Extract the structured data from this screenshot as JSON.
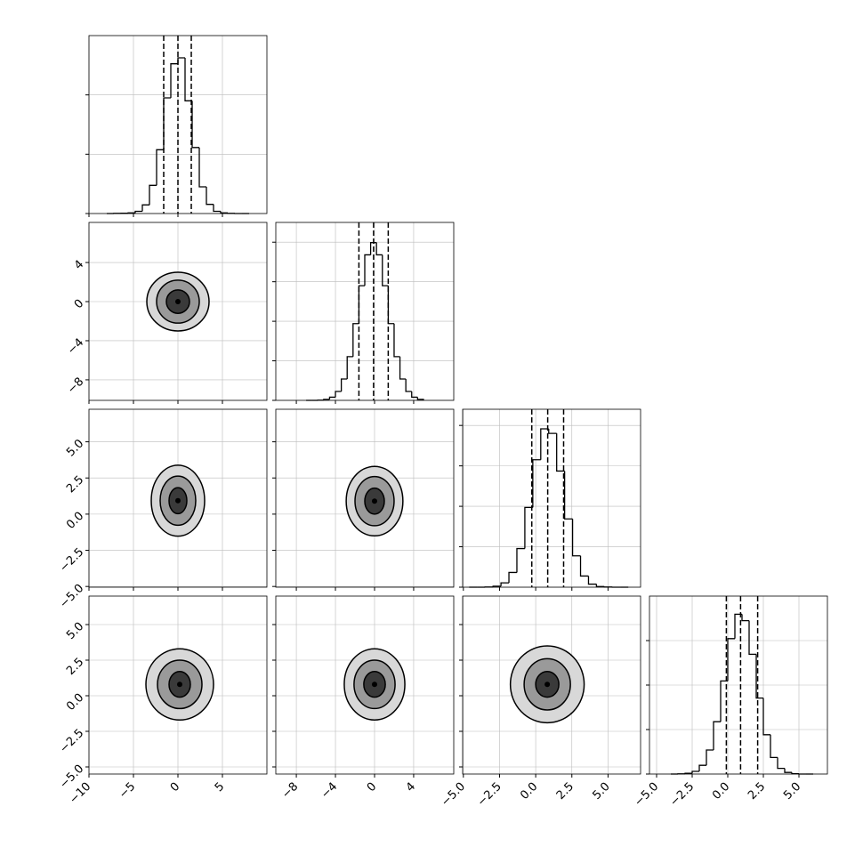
{
  "chart_data": {
    "type": "corner",
    "grid": true,
    "params": [
      {
        "xlim": [
          -10,
          10
        ],
        "xticks": [
          {
            "value": -10,
            "label": "−10"
          },
          {
            "value": -5,
            "label": "−5"
          },
          0,
          5
        ],
        "bins": [
          -8,
          -7.2,
          -6.4,
          -5.6,
          -4.8,
          -4,
          -3.2,
          -2.4,
          -1.6,
          -0.8,
          0,
          0.8,
          1.6,
          2.4,
          3.2,
          4,
          4.8,
          5.6,
          6.4,
          7.2,
          8
        ],
        "counts": [
          0,
          1,
          2,
          4,
          15,
          58,
          190,
          430,
          780,
          1010,
          1050,
          760,
          445,
          180,
          62,
          15,
          4,
          1,
          0,
          0
        ],
        "hist_ylim": [
          0,
          1200
        ],
        "hist_yticks": [
          0,
          400,
          800
        ],
        "quantiles": [
          -1.6,
          0,
          1.5
        ]
      },
      {
        "xlim": [
          -10.1,
          8.1
        ],
        "xticks": [
          {
            "value": -8,
            "label": "−8"
          },
          {
            "value": -4,
            "label": "−4"
          },
          0,
          4
        ],
        "bins": [
          -7,
          -6.4,
          -5.8,
          -5.2,
          -4.6,
          -4,
          -3.4,
          -2.8,
          -2.2,
          -1.6,
          -1,
          -0.4,
          0.2,
          0.8,
          1.4,
          2,
          2.6,
          3.2,
          3.8,
          4.4,
          5
        ],
        "counts": [
          0,
          0,
          1,
          5,
          16,
          45,
          108,
          221,
          388,
          580,
          736,
          798,
          736,
          580,
          388,
          221,
          108,
          45,
          16,
          5
        ],
        "hist_ylim": [
          0,
          900
        ],
        "hist_yticks": [
          0,
          200,
          400,
          600,
          800
        ],
        "quantiles": [
          -1.6,
          -0.1,
          1.4
        ]
      },
      {
        "xlim": [
          -5.05,
          7.25
        ],
        "xticks": [
          {
            "value": -5,
            "label": "−5.0"
          },
          {
            "value": -2.5,
            "label": "−2.5"
          },
          {
            "value": 0,
            "label": "0.0"
          },
          {
            "value": 2.5,
            "label": "2.5"
          },
          {
            "value": 5,
            "label": "5.0"
          }
        ],
        "bins": [
          -4.6,
          -4.05,
          -3.5,
          -2.95,
          -2.4,
          -1.85,
          -1.3,
          -0.75,
          -0.2,
          0.35,
          0.9,
          1.45,
          2,
          2.55,
          3.1,
          3.65,
          4.2,
          4.75,
          5.3,
          5.85,
          6.4
        ],
        "counts": [
          0,
          0,
          1,
          6,
          27,
          91,
          239,
          493,
          788,
          979,
          951,
          718,
          422,
          194,
          69,
          19,
          4,
          1,
          0,
          0
        ],
        "hist_ylim": [
          0,
          1100
        ],
        "hist_yticks": [
          0,
          250,
          500,
          750,
          1000
        ],
        "quantiles": [
          -0.27,
          0.83,
          1.93
        ]
      },
      {
        "xlim": [
          -5.5,
          7.0
        ],
        "xticks": [
          {
            "value": -5,
            "label": "−5.0"
          },
          {
            "value": -2.5,
            "label": "−2.5"
          },
          {
            "value": 0,
            "label": "0.0"
          },
          {
            "value": 2.5,
            "label": "2.5"
          },
          {
            "value": 5,
            "label": "5.0"
          }
        ],
        "bins": [
          -4,
          -3.5,
          -3,
          -2.5,
          -2,
          -1.5,
          -1,
          -0.5,
          0,
          0.5,
          1,
          1.5,
          2,
          2.5,
          3,
          3.5,
          4,
          4.5,
          5,
          5.5,
          6
        ],
        "counts": [
          0,
          1,
          4,
          15,
          49,
          135,
          294,
          523,
          761,
          898,
          862,
          673,
          427,
          221,
          93,
          32,
          9,
          2,
          0,
          0
        ],
        "hist_ylim": [
          0,
          1000
        ],
        "hist_yticks": [
          0,
          250,
          500,
          750
        ],
        "quantiles": [
          -0.1,
          0.9,
          2.1
        ]
      }
    ],
    "pairs": [
      {
        "x": 0,
        "y": 1,
        "center": [
          0,
          0
        ],
        "rx": [
          1.3,
          2.4,
          3.5
        ],
        "ry": [
          1.2,
          2.2,
          3.0
        ]
      },
      {
        "x": 0,
        "y": 2,
        "center": [
          0,
          0.93
        ],
        "rx": [
          1,
          2,
          3
        ],
        "ry": [
          0.9,
          1.7,
          2.45
        ]
      },
      {
        "x": 1,
        "y": 2,
        "center": [
          0,
          0.9
        ],
        "rx": [
          1,
          2,
          2.9
        ],
        "ry": [
          0.9,
          1.7,
          2.4
        ]
      },
      {
        "x": 0,
        "y": 3,
        "center": [
          0.2,
          0.8
        ],
        "rx": [
          1.2,
          2.5,
          3.8
        ],
        "ry": [
          0.9,
          1.7,
          2.5
        ]
      },
      {
        "x": 1,
        "y": 3,
        "center": [
          0,
          0.8
        ],
        "rx": [
          1.1,
          2.1,
          3.1
        ],
        "ry": [
          0.9,
          1.7,
          2.5
        ]
      },
      {
        "x": 2,
        "y": 3,
        "center": [
          0.8,
          0.8
        ],
        "rx": [
          0.8,
          1.6,
          2.55
        ],
        "ry": [
          0.9,
          1.8,
          2.7
        ]
      }
    ]
  }
}
